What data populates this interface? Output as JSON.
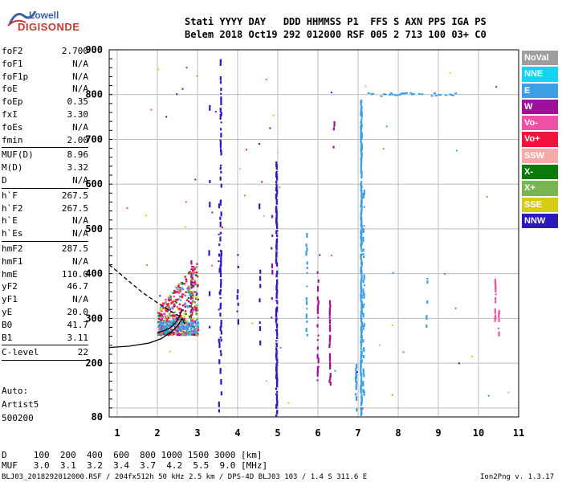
{
  "logo": {
    "line1": "Lowell",
    "line2": "DIGISONDE"
  },
  "header": {
    "line1": "Stati YYYY DAY   DDD HHMMSS P1  FFS S AXN PPS IGA PS",
    "line2": "Belem 2018 Oct19 292 012000 RSF 005 2 713 100 03+ C0"
  },
  "params": [
    {
      "k": "foF2",
      "v": "2.700"
    },
    {
      "k": "foF1",
      "v": "N/A"
    },
    {
      "k": "foF1p",
      "v": "N/A"
    },
    {
      "k": "foE",
      "v": "N/A"
    },
    {
      "k": "foEp",
      "v": "0.35"
    },
    {
      "k": "fxI",
      "v": "3.30"
    },
    {
      "k": "foEs",
      "v": "N/A"
    },
    {
      "k": "fmin",
      "v": "2.00"
    },
    {
      "k": "MUF(D)",
      "v": "8.96"
    },
    {
      "k": "M(D)",
      "v": "3.32"
    },
    {
      "k": "D",
      "v": "N/A"
    },
    {
      "k": "h`F",
      "v": "267.5"
    },
    {
      "k": "h`F2",
      "v": "267.5"
    },
    {
      "k": "h`E",
      "v": "N/A"
    },
    {
      "k": "h`Es",
      "v": "N/A"
    },
    {
      "k": "hmF2",
      "v": "287.5"
    },
    {
      "k": "hmF1",
      "v": "N/A"
    },
    {
      "k": "hmE",
      "v": "110.0"
    },
    {
      "k": "yF2",
      "v": "46.7"
    },
    {
      "k": "yF1",
      "v": "N/A"
    },
    {
      "k": "yE",
      "v": "20.0"
    },
    {
      "k": "B0",
      "v": "41.7"
    },
    {
      "k": "B1",
      "v": "3.11"
    },
    {
      "k": "C-level",
      "v": "22"
    }
  ],
  "auto": {
    "line1": "Auto:",
    "line2": "Artist5",
    "line3": "500200"
  },
  "legend": [
    {
      "label": "NoVal",
      "color": "#9e9e9e"
    },
    {
      "label": "NNE",
      "color": "#14d2f0"
    },
    {
      "label": "E",
      "color": "#3c9fe6"
    },
    {
      "label": "W",
      "color": "#a0119a"
    },
    {
      "label": "Vo-",
      "color": "#f04fa6"
    },
    {
      "label": "Vo+",
      "color": "#f0143c"
    },
    {
      "label": "SSW",
      "color": "#f5aaa8"
    },
    {
      "label": "X-",
      "color": "#0a7a0a"
    },
    {
      "label": "X+",
      "color": "#78b450"
    },
    {
      "label": "SSE",
      "color": "#d6cc14"
    },
    {
      "label": "NNW",
      "color": "#2a1ab8"
    }
  ],
  "footer": {
    "d_row": "D     100  200  400  600  800 1000 1500 3000 [km]",
    "muf_row": "MUF   3.0  3.1  3.2  3.4  3.7  4.2  5.5  9.0 [MHz]",
    "file_info": "BLJ03_2018292012000.RSF / 204fx512h 50 kHz 2.5 km / DPS-4D BLJ03 103 / 1.4 S 311.6 E",
    "version": "Ion2Png v. 1.3.17"
  },
  "chart_data": {
    "type": "scatter",
    "title": "",
    "xlabel": "",
    "ylabel": "",
    "xlim": [
      0.8,
      11
    ],
    "ylim": [
      80,
      900
    ],
    "x_ticks": [
      1,
      2,
      3,
      4,
      5,
      6,
      7,
      8,
      9,
      10,
      11
    ],
    "y_ticks": [
      80,
      100,
      200,
      300,
      400,
      500,
      600,
      700,
      800,
      900
    ],
    "y_tick_labels": [
      "80",
      "",
      "200",
      "300",
      "400",
      "500",
      "600",
      "700",
      "800",
      "900"
    ],
    "grid": true,
    "profile_solid": [
      [
        0.8,
        235
      ],
      [
        1.3,
        238
      ],
      [
        1.8,
        245
      ],
      [
        2.1,
        255
      ],
      [
        2.35,
        270
      ],
      [
        2.5,
        283
      ],
      [
        2.62,
        300
      ],
      [
        2.68,
        287
      ]
    ],
    "profile_dashed": [
      [
        0.8,
        420
      ],
      [
        1.2,
        390
      ],
      [
        1.6,
        360
      ],
      [
        2.0,
        335
      ],
      [
        2.3,
        318
      ],
      [
        2.55,
        305
      ]
    ],
    "fit_trace": [
      [
        2.0,
        268
      ],
      [
        2.15,
        272
      ],
      [
        2.3,
        278
      ],
      [
        2.45,
        290
      ],
      [
        2.55,
        305
      ],
      [
        2.62,
        320
      ]
    ],
    "columns": [
      {
        "color": "#2a1ab8",
        "x": 3.58,
        "y0": 120,
        "y1": 890,
        "step": 8,
        "density": 0.6
      },
      {
        "color": "#2a1ab8",
        "x": 3.54,
        "y0": 90,
        "y1": 560,
        "step": 12,
        "density": 0.35
      },
      {
        "color": "#2a1ab8",
        "x": 4.97,
        "y0": 80,
        "y1": 640,
        "step": 6,
        "density": 0.85
      },
      {
        "color": "#2a1ab8",
        "x": 4.0,
        "y0": 230,
        "y1": 470,
        "step": 14,
        "density": 0.4
      },
      {
        "color": "#2a1ab8",
        "x": 3.3,
        "y0": 260,
        "y1": 800,
        "step": 18,
        "density": 0.35
      },
      {
        "color": "#2a1ab8",
        "x": 4.55,
        "y0": 240,
        "y1": 700,
        "step": 16,
        "density": 0.3
      },
      {
        "color": "#3c9fe6",
        "x": 7.08,
        "y0": 80,
        "y1": 780,
        "step": 4,
        "density": 0.95
      },
      {
        "color": "#3c9fe6",
        "x": 7.14,
        "y0": 120,
        "y1": 600,
        "step": 7,
        "density": 0.4
      },
      {
        "color": "#3c9fe6",
        "x": 5.72,
        "y0": 250,
        "y1": 480,
        "step": 10,
        "density": 0.45
      },
      {
        "color": "#3c9fe6",
        "x": 8.72,
        "y0": 270,
        "y1": 420,
        "step": 9,
        "density": 0.6
      },
      {
        "color": "#3c9fe6",
        "x": 6.95,
        "y0": 80,
        "y1": 200,
        "step": 6,
        "density": 0.5
      },
      {
        "color": "#a0119a",
        "x": 6.3,
        "y0": 150,
        "y1": 330,
        "step": 6,
        "density": 0.75
      },
      {
        "color": "#a0119a",
        "x": 6.0,
        "y0": 160,
        "y1": 400,
        "step": 10,
        "density": 0.5
      },
      {
        "color": "#a0119a",
        "x": 4.85,
        "y0": 300,
        "y1": 580,
        "step": 14,
        "density": 0.45
      },
      {
        "color": "#a0119a",
        "x": 6.4,
        "y0": 680,
        "y1": 730,
        "step": 8,
        "density": 0.7
      },
      {
        "color": "#a0119a",
        "x": 2.85,
        "y0": 300,
        "y1": 430,
        "step": 6,
        "density": 0.7
      },
      {
        "color": "#f04fa6",
        "x": 10.42,
        "y0": 280,
        "y1": 380,
        "step": 6,
        "density": 0.7
      },
      {
        "color": "#f04fa6",
        "x": 10.5,
        "y0": 260,
        "y1": 320,
        "step": 8,
        "density": 0.5
      }
    ],
    "horizontal_band": {
      "color": "#3c9fe6",
      "y": 800,
      "x0": 7.2,
      "x1": 9.5,
      "density": 0.55
    },
    "cluster": {
      "x0": 2.0,
      "x1": 3.0,
      "y0": 265,
      "y1": 430,
      "colors": [
        "#f0143c",
        "#a0119a",
        "#f04fa6",
        "#d6cc14",
        "#0a7a0a",
        "#78b450",
        "#3c9fe6",
        "#14d2f0"
      ],
      "count": 520
    },
    "low_echo": {
      "x0": 2.0,
      "x1": 3.0,
      "y0": 270,
      "y1": 295,
      "color": "#3c9fe6",
      "count": 120
    }
  }
}
